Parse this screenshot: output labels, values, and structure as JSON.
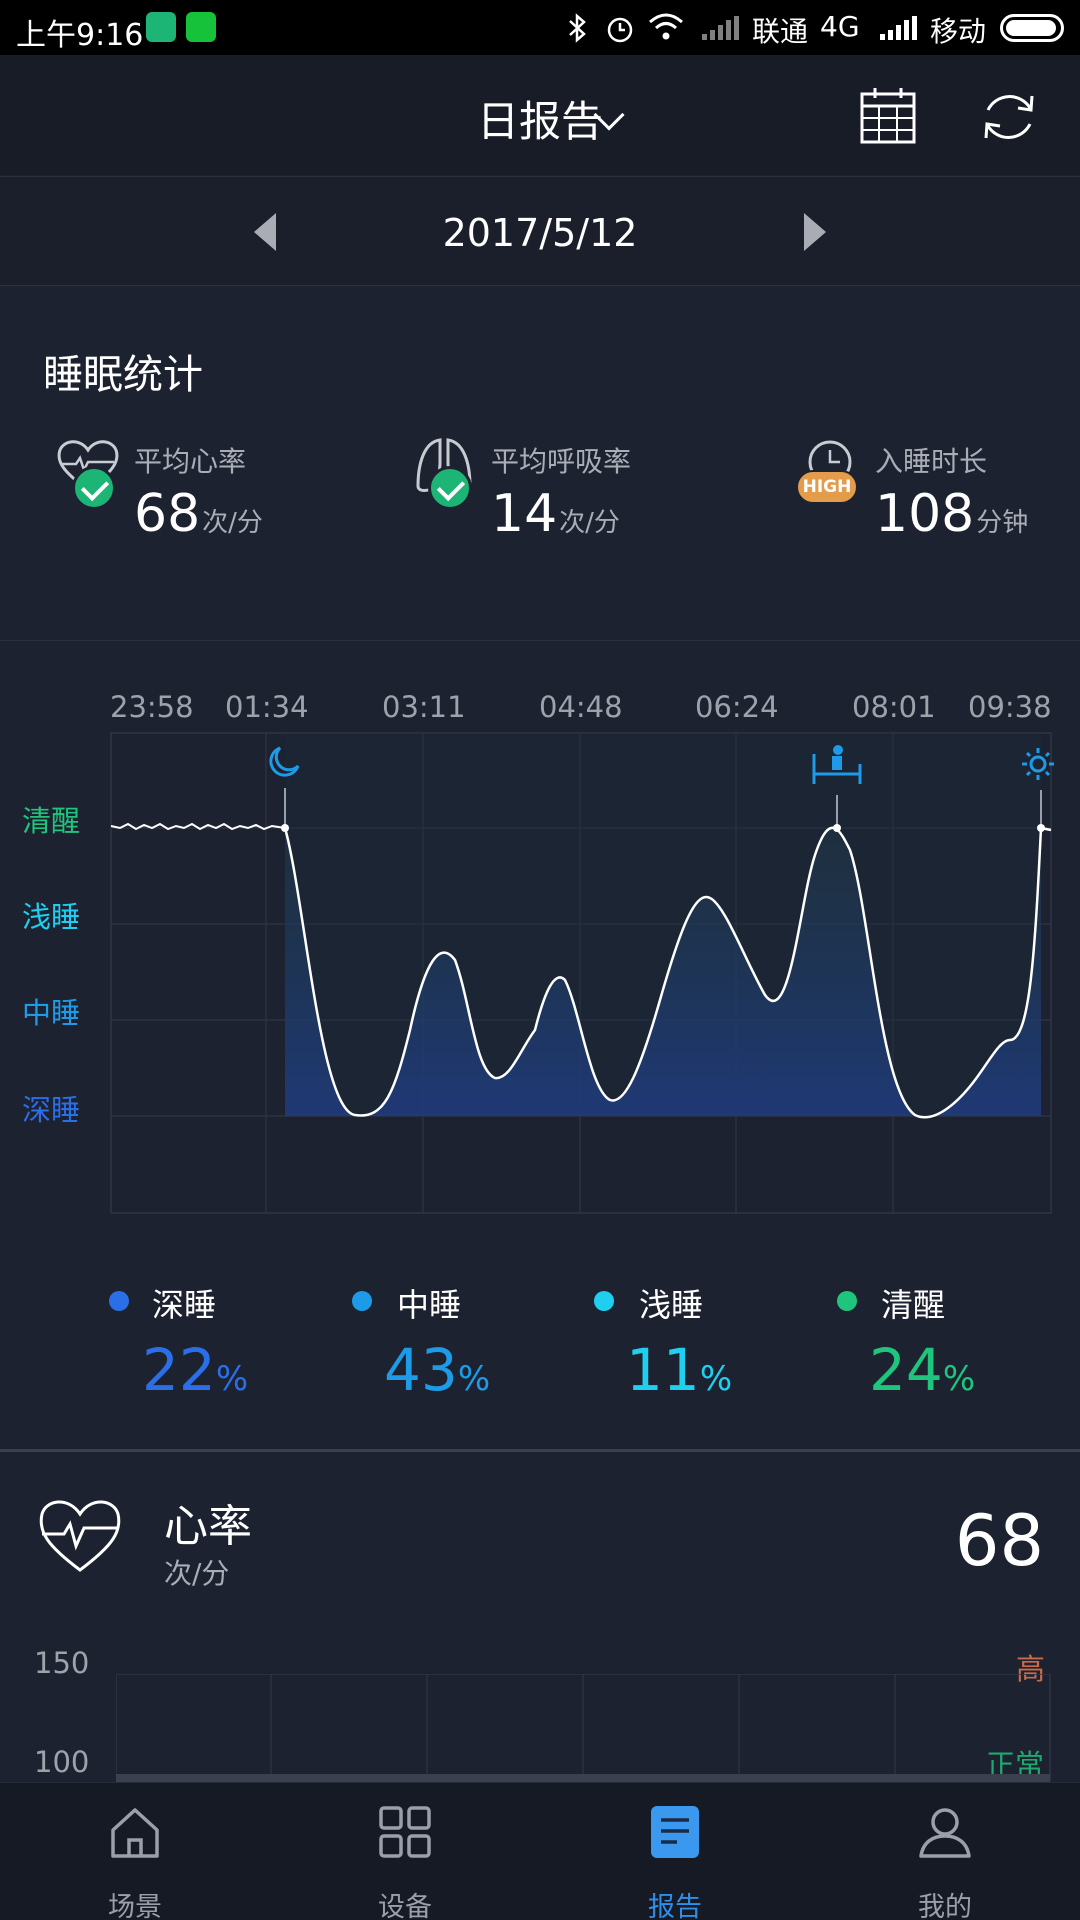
{
  "status_bar": {
    "time": "上午9:16",
    "carrier1": "联通",
    "network": "4G",
    "carrier2": "移动"
  },
  "header": {
    "title": "日报告"
  },
  "date_nav": {
    "date": "2017/5/12"
  },
  "sleep_stats": {
    "title": "睡眠统计",
    "items": [
      {
        "label": "平均心率",
        "value": "68",
        "unit": "次/分",
        "icon": "heart-icon",
        "badge": "check"
      },
      {
        "label": "平均呼吸率",
        "value": "14",
        "unit": "次/分",
        "icon": "lungs-icon",
        "badge": "check"
      },
      {
        "label": "入睡时长",
        "value": "108",
        "unit": "分钟",
        "icon": "clock-icon",
        "badge": "HIGH"
      }
    ]
  },
  "sleep_chart": {
    "times": [
      "23:58",
      "01:34",
      "03:11",
      "04:48",
      "06:24",
      "08:01",
      "09:38"
    ],
    "stages": [
      "清醒",
      "浅睡",
      "中睡",
      "深睡"
    ],
    "stage_colors": [
      "#1fc47d",
      "#1ecff0",
      "#1e9be8",
      "#2a6fe8"
    ]
  },
  "sleep_legend": [
    {
      "name": "深睡",
      "percent": "22",
      "symbol": "%",
      "color": "#2a6fe8"
    },
    {
      "name": "中睡",
      "percent": "43",
      "symbol": "%",
      "color": "#1e9be8"
    },
    {
      "name": "浅睡",
      "percent": "11",
      "symbol": "%",
      "color": "#1ecff0"
    },
    {
      "name": "清醒",
      "percent": "24",
      "symbol": "%",
      "color": "#1fc47d"
    }
  ],
  "heart_rate": {
    "title": "心率",
    "unit": "次/分",
    "value": "68",
    "axis": [
      "150",
      "100"
    ],
    "level_high": "高",
    "level_normal": "正常"
  },
  "bottom_nav": [
    {
      "label": "场景",
      "icon": "home-icon",
      "active": false
    },
    {
      "label": "设备",
      "icon": "grid-icon",
      "active": false
    },
    {
      "label": "报告",
      "icon": "report-icon",
      "active": true
    },
    {
      "label": "我的",
      "icon": "user-icon",
      "active": false
    }
  ]
}
